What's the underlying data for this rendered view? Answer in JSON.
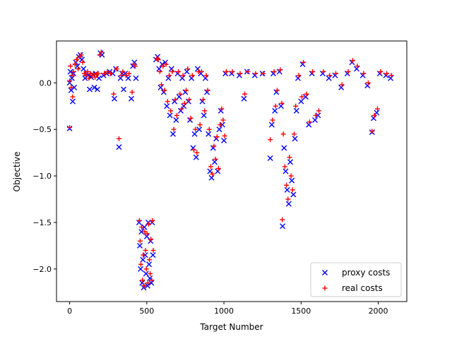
{
  "chart_data": {
    "type": "scatter",
    "title": "",
    "xlabel": "Target Number",
    "ylabel": "Objective",
    "xlim": [
      -85,
      2185
    ],
    "ylim": [
      -2.35,
      0.45
    ],
    "xticks": [
      0,
      500,
      1000,
      1500,
      2000
    ],
    "xtick_labels": [
      "0",
      "500",
      "1000",
      "1500",
      "2000"
    ],
    "yticks": [
      0.0,
      -0.5,
      -1.0,
      -1.5,
      -2.0
    ],
    "ytick_labels": [
      "0.0",
      "−0.5",
      "−1.0",
      "−1.5",
      "−2.0"
    ],
    "grid": false,
    "legend": {
      "placement": "lower-right"
    },
    "series": [
      {
        "name": "proxy costs",
        "marker": "x",
        "color": "#0000ff",
        "points": [
          [
            0,
            -0.49
          ],
          [
            0,
            0.0
          ],
          [
            5,
            0.12
          ],
          [
            10,
            -0.08
          ],
          [
            15,
            0.05
          ],
          [
            20,
            -0.2
          ],
          [
            25,
            0.1
          ],
          [
            30,
            -0.05
          ],
          [
            40,
            0.22
          ],
          [
            50,
            0.18
          ],
          [
            60,
            0.28
          ],
          [
            70,
            0.3
          ],
          [
            80,
            0.25
          ],
          [
            90,
            0.15
          ],
          [
            100,
            0.05
          ],
          [
            110,
            0.1
          ],
          [
            120,
            0.08
          ],
          [
            130,
            -0.07
          ],
          [
            140,
            0.06
          ],
          [
            150,
            0.09
          ],
          [
            160,
            -0.05
          ],
          [
            170,
            0.1
          ],
          [
            180,
            -0.07
          ],
          [
            190,
            0.05
          ],
          [
            200,
            0.32
          ],
          [
            210,
            0.3
          ],
          [
            220,
            0.08
          ],
          [
            240,
            0.1
          ],
          [
            260,
            0.12
          ],
          [
            280,
            0.1
          ],
          [
            290,
            -0.17
          ],
          [
            300,
            0.15
          ],
          [
            320,
            -0.69
          ],
          [
            330,
            0.05
          ],
          [
            340,
            0.1
          ],
          [
            350,
            -0.07
          ],
          [
            360,
            0.1
          ],
          [
            380,
            0.05
          ],
          [
            400,
            -0.17
          ],
          [
            410,
            0.18
          ],
          [
            420,
            0.22
          ],
          [
            430,
            0.05
          ],
          [
            450,
            -1.5
          ],
          [
            455,
            -1.75
          ],
          [
            460,
            -2.0
          ],
          [
            465,
            -1.6
          ],
          [
            470,
            -2.15
          ],
          [
            475,
            -1.9
          ],
          [
            480,
            -2.2
          ],
          [
            485,
            -1.55
          ],
          [
            490,
            -1.85
          ],
          [
            495,
            -2.05
          ],
          [
            500,
            -1.65
          ],
          [
            505,
            -2.18
          ],
          [
            510,
            -1.5
          ],
          [
            515,
            -1.95
          ],
          [
            520,
            -2.1
          ],
          [
            525,
            -1.7
          ],
          [
            530,
            -2.15
          ],
          [
            535,
            -1.5
          ],
          [
            540,
            -1.85
          ],
          [
            560,
            0.25
          ],
          [
            570,
            0.28
          ],
          [
            580,
            0.15
          ],
          [
            590,
            -0.05
          ],
          [
            600,
            0.2
          ],
          [
            610,
            -0.1
          ],
          [
            620,
            0.22
          ],
          [
            630,
            -0.25
          ],
          [
            640,
            0.05
          ],
          [
            650,
            -0.35
          ],
          [
            660,
            0.15
          ],
          [
            670,
            -0.55
          ],
          [
            680,
            -0.2
          ],
          [
            690,
            -0.4
          ],
          [
            700,
            0.1
          ],
          [
            710,
            -0.15
          ],
          [
            720,
            -0.3
          ],
          [
            730,
            0.05
          ],
          [
            740,
            -0.25
          ],
          [
            750,
            -0.1
          ],
          [
            760,
            0.12
          ],
          [
            770,
            -0.2
          ],
          [
            780,
            -0.4
          ],
          [
            790,
            0.05
          ],
          [
            800,
            -0.7
          ],
          [
            810,
            -0.55
          ],
          [
            820,
            -0.8
          ],
          [
            830,
            0.15
          ],
          [
            840,
            -0.5
          ],
          [
            850,
            0.1
          ],
          [
            860,
            -0.2
          ],
          [
            870,
            -0.35
          ],
          [
            880,
            0.05
          ],
          [
            890,
            -0.1
          ],
          [
            900,
            -0.55
          ],
          [
            910,
            -0.95
          ],
          [
            920,
            -1.02
          ],
          [
            930,
            -0.7
          ],
          [
            940,
            -0.85
          ],
          [
            950,
            -0.6
          ],
          [
            960,
            -0.95
          ],
          [
            970,
            -0.5
          ],
          [
            980,
            -0.3
          ],
          [
            990,
            -0.45
          ],
          [
            1000,
            -0.62
          ],
          [
            1010,
            0.1
          ],
          [
            1050,
            0.1
          ],
          [
            1100,
            0.08
          ],
          [
            1130,
            -0.17
          ],
          [
            1150,
            0.12
          ],
          [
            1200,
            0.08
          ],
          [
            1250,
            0.1
          ],
          [
            1300,
            -0.81
          ],
          [
            1310,
            -0.45
          ],
          [
            1320,
            0.1
          ],
          [
            1330,
            -0.3
          ],
          [
            1340,
            -0.1
          ],
          [
            1360,
            0.12
          ],
          [
            1370,
            -0.25
          ],
          [
            1380,
            -1.54
          ],
          [
            1390,
            -0.7
          ],
          [
            1400,
            -0.95
          ],
          [
            1410,
            -1.15
          ],
          [
            1420,
            -1.3
          ],
          [
            1430,
            -0.85
          ],
          [
            1440,
            -1.05
          ],
          [
            1450,
            -1.2
          ],
          [
            1460,
            -0.6
          ],
          [
            1470,
            -0.3
          ],
          [
            1480,
            0.05
          ],
          [
            1500,
            -0.2
          ],
          [
            1510,
            0.2
          ],
          [
            1530,
            -0.15
          ],
          [
            1550,
            -0.45
          ],
          [
            1570,
            0.1
          ],
          [
            1590,
            -0.4
          ],
          [
            1610,
            -0.35
          ],
          [
            1640,
            0.1
          ],
          [
            1680,
            0.05
          ],
          [
            1720,
            0.08
          ],
          [
            1760,
            -0.05
          ],
          [
            1800,
            0.1
          ],
          [
            1830,
            0.22
          ],
          [
            1860,
            0.15
          ],
          [
            1900,
            0.08
          ],
          [
            1930,
            -0.03
          ],
          [
            1960,
            -0.53
          ],
          [
            1970,
            -0.38
          ],
          [
            1990,
            -0.32
          ],
          [
            2010,
            0.1
          ],
          [
            2050,
            0.08
          ],
          [
            2080,
            0.05
          ]
        ]
      },
      {
        "name": "real costs",
        "marker": "+",
        "color": "#ff0000",
        "points": [
          [
            0,
            -0.48
          ],
          [
            0,
            0.02
          ],
          [
            5,
            0.18
          ],
          [
            10,
            -0.05
          ],
          [
            15,
            0.08
          ],
          [
            20,
            -0.15
          ],
          [
            25,
            0.12
          ],
          [
            35,
            0.2
          ],
          [
            45,
            0.25
          ],
          [
            55,
            0.15
          ],
          [
            65,
            0.28
          ],
          [
            75,
            0.3
          ],
          [
            85,
            0.22
          ],
          [
            95,
            0.1
          ],
          [
            105,
            0.08
          ],
          [
            115,
            0.12
          ],
          [
            125,
            0.05
          ],
          [
            135,
            0.1
          ],
          [
            145,
            0.08
          ],
          [
            155,
            0.1
          ],
          [
            165,
            0.06
          ],
          [
            175,
            0.09
          ],
          [
            185,
            0.1
          ],
          [
            195,
            0.3
          ],
          [
            205,
            0.33
          ],
          [
            225,
            0.1
          ],
          [
            245,
            0.12
          ],
          [
            265,
            0.1
          ],
          [
            285,
            -0.12
          ],
          [
            305,
            0.15
          ],
          [
            320,
            -0.6
          ],
          [
            335,
            0.08
          ],
          [
            345,
            0.12
          ],
          [
            365,
            0.08
          ],
          [
            385,
            0.1
          ],
          [
            405,
            -0.1
          ],
          [
            415,
            0.2
          ],
          [
            425,
            0.18
          ],
          [
            452,
            -1.48
          ],
          [
            457,
            -1.7
          ],
          [
            462,
            -1.95
          ],
          [
            467,
            -1.55
          ],
          [
            472,
            -2.12
          ],
          [
            477,
            -1.85
          ],
          [
            482,
            -2.18
          ],
          [
            487,
            -1.6
          ],
          [
            492,
            -1.8
          ],
          [
            497,
            -2.0
          ],
          [
            502,
            -1.62
          ],
          [
            507,
            -2.15
          ],
          [
            512,
            -1.52
          ],
          [
            517,
            -1.9
          ],
          [
            522,
            -2.05
          ],
          [
            527,
            -1.68
          ],
          [
            532,
            -2.12
          ],
          [
            537,
            -1.48
          ],
          [
            542,
            -1.8
          ],
          [
            565,
            0.26
          ],
          [
            575,
            0.25
          ],
          [
            585,
            0.12
          ],
          [
            595,
            -0.02
          ],
          [
            605,
            0.18
          ],
          [
            615,
            -0.08
          ],
          [
            625,
            0.2
          ],
          [
            635,
            -0.2
          ],
          [
            645,
            0.08
          ],
          [
            655,
            -0.3
          ],
          [
            665,
            0.12
          ],
          [
            675,
            -0.5
          ],
          [
            685,
            -0.18
          ],
          [
            695,
            -0.35
          ],
          [
            705,
            0.12
          ],
          [
            715,
            -0.12
          ],
          [
            725,
            -0.28
          ],
          [
            735,
            0.08
          ],
          [
            745,
            -0.22
          ],
          [
            755,
            -0.08
          ],
          [
            765,
            0.15
          ],
          [
            775,
            -0.18
          ],
          [
            785,
            -0.38
          ],
          [
            795,
            0.08
          ],
          [
            805,
            -0.72
          ],
          [
            815,
            -0.5
          ],
          [
            825,
            -0.75
          ],
          [
            835,
            0.12
          ],
          [
            845,
            -0.45
          ],
          [
            855,
            0.12
          ],
          [
            865,
            -0.18
          ],
          [
            875,
            -0.3
          ],
          [
            885,
            0.08
          ],
          [
            895,
            -0.08
          ],
          [
            905,
            -0.5
          ],
          [
            915,
            -0.9
          ],
          [
            925,
            -0.98
          ],
          [
            935,
            -0.68
          ],
          [
            945,
            -0.82
          ],
          [
            955,
            -0.58
          ],
          [
            965,
            -0.92
          ],
          [
            975,
            -0.45
          ],
          [
            985,
            -0.28
          ],
          [
            995,
            -0.4
          ],
          [
            1005,
            -0.57
          ],
          [
            1015,
            0.12
          ],
          [
            1055,
            0.12
          ],
          [
            1105,
            0.1
          ],
          [
            1135,
            -0.12
          ],
          [
            1155,
            0.12
          ],
          [
            1205,
            0.1
          ],
          [
            1255,
            0.1
          ],
          [
            1300,
            -0.61
          ],
          [
            1315,
            -0.4
          ],
          [
            1325,
            0.12
          ],
          [
            1335,
            -0.25
          ],
          [
            1345,
            -0.08
          ],
          [
            1365,
            0.14
          ],
          [
            1375,
            -0.22
          ],
          [
            1378,
            -1.47
          ],
          [
            1385,
            -0.55
          ],
          [
            1395,
            -0.9
          ],
          [
            1405,
            -1.1
          ],
          [
            1415,
            -1.25
          ],
          [
            1425,
            -0.8
          ],
          [
            1435,
            -1.0
          ],
          [
            1445,
            -1.15
          ],
          [
            1455,
            -0.55
          ],
          [
            1465,
            -0.25
          ],
          [
            1485,
            0.08
          ],
          [
            1505,
            -0.15
          ],
          [
            1515,
            0.22
          ],
          [
            1535,
            -0.12
          ],
          [
            1555,
            -0.42
          ],
          [
            1575,
            0.12
          ],
          [
            1595,
            -0.35
          ],
          [
            1615,
            -0.3
          ],
          [
            1645,
            0.12
          ],
          [
            1685,
            0.08
          ],
          [
            1725,
            0.1
          ],
          [
            1765,
            -0.02
          ],
          [
            1805,
            0.12
          ],
          [
            1835,
            0.24
          ],
          [
            1865,
            0.18
          ],
          [
            1905,
            0.1
          ],
          [
            1935,
            0.0
          ],
          [
            1960,
            -0.52
          ],
          [
            1975,
            -0.35
          ],
          [
            1995,
            -0.28
          ],
          [
            2015,
            0.12
          ],
          [
            2055,
            0.1
          ],
          [
            2085,
            0.08
          ]
        ]
      }
    ]
  }
}
